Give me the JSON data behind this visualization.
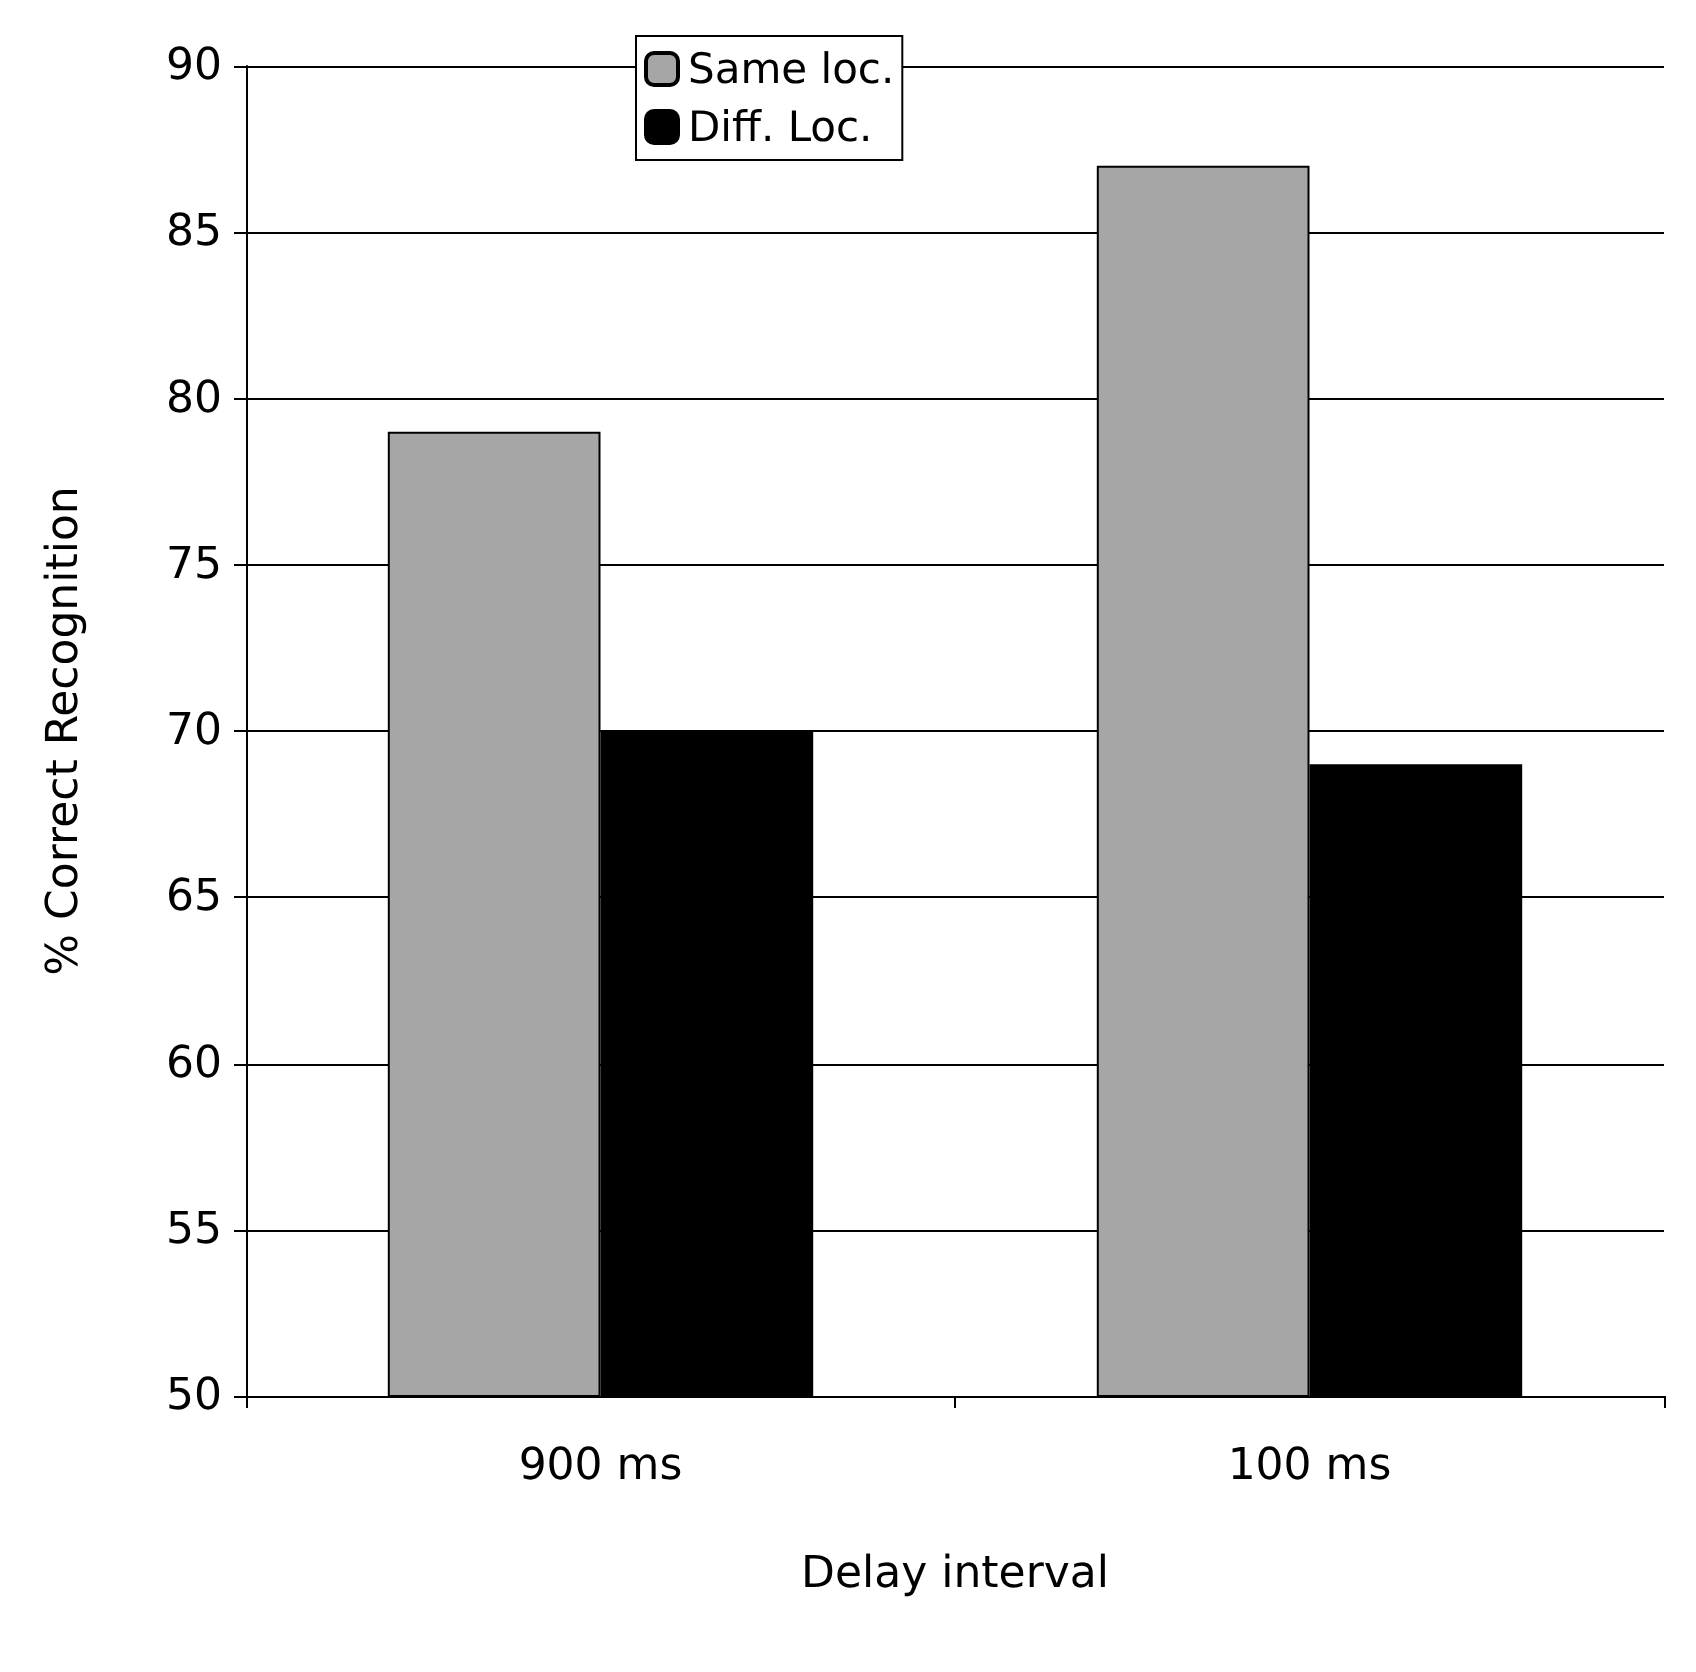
{
  "chart_data": {
    "type": "bar",
    "xlabel": "Delay interval",
    "ylabel": "% Correct Recognition",
    "categories": [
      "900 ms",
      "100 ms"
    ],
    "series": [
      {
        "name": "Same loc.",
        "color": "#a6a6a6",
        "values": [
          79,
          87
        ]
      },
      {
        "name": "Diff. Loc.",
        "color": "#000000",
        "values": [
          70,
          69
        ]
      }
    ],
    "ylim": [
      50,
      90
    ],
    "yticks": [
      50,
      55,
      60,
      65,
      70,
      75,
      80,
      85,
      90
    ],
    "grid": "y",
    "legend": "top"
  }
}
